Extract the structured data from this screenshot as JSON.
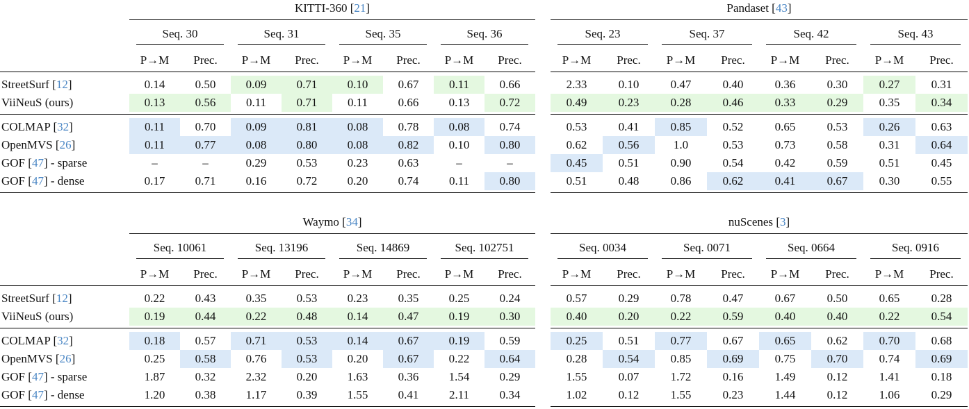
{
  "colors": {
    "highlight_green": "#e4f8e0",
    "highlight_blue": "#dbe9f8",
    "citation_blue": "#4a86c4",
    "text": "#111111",
    "rule": "#000000"
  },
  "metric_headers": [
    "P→M",
    "Prec."
  ],
  "missing_value": "–",
  "tables": [
    {
      "title": "KITTI-360",
      "cite": "21",
      "has_labels": true,
      "seqs": [
        "Seq. 30",
        "Seq. 31",
        "Seq. 35",
        "Seq. 36"
      ],
      "rows": [
        {
          "name": "StreetSurf",
          "cite": "12",
          "suffix": "",
          "section": 1,
          "values": [
            "0.14",
            "0.50",
            "0.09",
            "0.71",
            "0.10",
            "0.67",
            "0.11",
            "0.66"
          ],
          "hl": [
            "",
            "",
            "g",
            "g",
            "g",
            "",
            "g",
            ""
          ]
        },
        {
          "name": "ViiNeuS (ours)",
          "cite": "",
          "suffix": "",
          "section": 1,
          "values": [
            "0.13",
            "0.56",
            "0.11",
            "0.71",
            "0.11",
            "0.66",
            "0.13",
            "0.72"
          ],
          "hl": [
            "g",
            "g",
            "",
            "g",
            "",
            "",
            "",
            "g"
          ]
        },
        {
          "name": "COLMAP",
          "cite": "32",
          "suffix": "",
          "section": 2,
          "values": [
            "0.11",
            "0.70",
            "0.09",
            "0.81",
            "0.08",
            "0.78",
            "0.08",
            "0.74"
          ],
          "hl": [
            "b",
            "",
            "b",
            "b",
            "b",
            "",
            "b",
            ""
          ]
        },
        {
          "name": "OpenMVS",
          "cite": "26",
          "suffix": "",
          "section": 2,
          "values": [
            "0.11",
            "0.77",
            "0.08",
            "0.80",
            "0.08",
            "0.82",
            "0.10",
            "0.80"
          ],
          "hl": [
            "b",
            "b",
            "b",
            "b",
            "b",
            "b",
            "",
            "b"
          ]
        },
        {
          "name": "GOF",
          "cite": "47",
          "suffix": " - sparse",
          "section": 2,
          "values": [
            "–",
            "–",
            "0.29",
            "0.53",
            "0.23",
            "0.63",
            "–",
            "–"
          ],
          "hl": [
            "",
            "",
            "",
            "",
            "",
            "",
            "",
            ""
          ]
        },
        {
          "name": "GOF",
          "cite": "47",
          "suffix": " - dense",
          "section": 2,
          "values": [
            "0.17",
            "0.71",
            "0.16",
            "0.72",
            "0.20",
            "0.74",
            "0.11",
            "0.80"
          ],
          "hl": [
            "",
            "",
            "",
            "",
            "",
            "",
            "",
            "b"
          ]
        }
      ]
    },
    {
      "title": "Pandaset",
      "cite": "43",
      "has_labels": false,
      "seqs": [
        "Seq. 23",
        "Seq. 37",
        "Seq. 42",
        "Seq. 43"
      ],
      "rows": [
        {
          "name": "StreetSurf",
          "cite": "12",
          "suffix": "",
          "section": 1,
          "values": [
            "2.33",
            "0.10",
            "0.47",
            "0.40",
            "0.36",
            "0.30",
            "0.27",
            "0.31"
          ],
          "hl": [
            "",
            "",
            "",
            "",
            "",
            "",
            "g",
            ""
          ]
        },
        {
          "name": "ViiNeuS (ours)",
          "cite": "",
          "suffix": "",
          "section": 1,
          "values": [
            "0.49",
            "0.23",
            "0.28",
            "0.46",
            "0.33",
            "0.29",
            "0.35",
            "0.34"
          ],
          "hl": [
            "g",
            "g",
            "g",
            "g",
            "g",
            "g",
            "",
            "g"
          ]
        },
        {
          "name": "COLMAP",
          "cite": "32",
          "suffix": "",
          "section": 2,
          "values": [
            "0.53",
            "0.41",
            "0.85",
            "0.52",
            "0.65",
            "0.53",
            "0.26",
            "0.63"
          ],
          "hl": [
            "",
            "",
            "b",
            "",
            "",
            "",
            "b",
            ""
          ]
        },
        {
          "name": "OpenMVS",
          "cite": "26",
          "suffix": "",
          "section": 2,
          "values": [
            "0.62",
            "0.56",
            "1.0",
            "0.53",
            "0.73",
            "0.58",
            "0.31",
            "0.64"
          ],
          "hl": [
            "",
            "b",
            "",
            "",
            "",
            "",
            "",
            "b"
          ]
        },
        {
          "name": "GOF",
          "cite": "47",
          "suffix": " - sparse",
          "section": 2,
          "values": [
            "0.45",
            "0.51",
            "0.90",
            "0.54",
            "0.42",
            "0.59",
            "0.51",
            "0.45"
          ],
          "hl": [
            "b",
            "",
            "",
            "",
            "",
            "",
            "",
            ""
          ]
        },
        {
          "name": "GOF",
          "cite": "47",
          "suffix": " - dense",
          "section": 2,
          "values": [
            "0.51",
            "0.48",
            "0.86",
            "0.62",
            "0.41",
            "0.67",
            "0.30",
            "0.55"
          ],
          "hl": [
            "",
            "",
            "",
            "b",
            "b",
            "b",
            "",
            ""
          ]
        }
      ]
    },
    {
      "title": "Waymo",
      "cite": "34",
      "has_labels": true,
      "seqs": [
        "Seq. 10061",
        "Seq. 13196",
        "Seq. 14869",
        "Seq. 102751"
      ],
      "rows": [
        {
          "name": "StreetSurf",
          "cite": "12",
          "suffix": "",
          "section": 1,
          "values": [
            "0.22",
            "0.43",
            "0.35",
            "0.53",
            "0.23",
            "0.35",
            "0.25",
            "0.24"
          ],
          "hl": [
            "",
            "",
            "",
            "",
            "",
            "",
            "",
            ""
          ]
        },
        {
          "name": "ViiNeuS (ours)",
          "cite": "",
          "suffix": "",
          "section": 1,
          "values": [
            "0.19",
            "0.44",
            "0.22",
            "0.48",
            "0.14",
            "0.47",
            "0.19",
            "0.30"
          ],
          "hl": [
            "g",
            "g",
            "g",
            "g",
            "g",
            "g",
            "g",
            "g"
          ]
        },
        {
          "name": "COLMAP",
          "cite": "32",
          "suffix": "",
          "section": 2,
          "values": [
            "0.18",
            "0.57",
            "0.71",
            "0.53",
            "0.14",
            "0.67",
            "0.19",
            "0.59"
          ],
          "hl": [
            "b",
            "",
            "b",
            "b",
            "b",
            "b",
            "b",
            ""
          ]
        },
        {
          "name": "OpenMVS",
          "cite": "26",
          "suffix": "",
          "section": 2,
          "values": [
            "0.25",
            "0.58",
            "0.76",
            "0.53",
            "0.20",
            "0.67",
            "0.22",
            "0.64"
          ],
          "hl": [
            "",
            "b",
            "",
            "b",
            "",
            "b",
            "",
            "b"
          ]
        },
        {
          "name": "GOF",
          "cite": "47",
          "suffix": " - sparse",
          "section": 2,
          "values": [
            "1.87",
            "0.32",
            "2.32",
            "0.20",
            "1.63",
            "0.36",
            "1.54",
            "0.29"
          ],
          "hl": [
            "",
            "",
            "",
            "",
            "",
            "",
            "",
            ""
          ]
        },
        {
          "name": "GOF",
          "cite": "47",
          "suffix": " - dense",
          "section": 2,
          "values": [
            "1.20",
            "0.38",
            "1.17",
            "0.39",
            "1.55",
            "0.41",
            "2.11",
            "0.34"
          ],
          "hl": [
            "",
            "",
            "",
            "",
            "",
            "",
            "",
            ""
          ]
        }
      ]
    },
    {
      "title": "nuScenes",
      "cite": "3",
      "has_labels": false,
      "seqs": [
        "Seq. 0034",
        "Seq. 0071",
        "Seq. 0664",
        "Seq. 0916"
      ],
      "rows": [
        {
          "name": "StreetSurf",
          "cite": "12",
          "suffix": "",
          "section": 1,
          "values": [
            "0.57",
            "0.29",
            "0.78",
            "0.47",
            "0.67",
            "0.50",
            "0.65",
            "0.28"
          ],
          "hl": [
            "",
            "",
            "",
            "",
            "",
            "",
            "",
            ""
          ]
        },
        {
          "name": "ViiNeuS (ours)",
          "cite": "",
          "suffix": "",
          "section": 1,
          "values": [
            "0.40",
            "0.20",
            "0.22",
            "0.59",
            "0.40",
            "0.40",
            "0.22",
            "0.54"
          ],
          "hl": [
            "g",
            "g",
            "g",
            "g",
            "g",
            "g",
            "g",
            "g"
          ]
        },
        {
          "name": "COLMAP",
          "cite": "32",
          "suffix": "",
          "section": 2,
          "values": [
            "0.25",
            "0.51",
            "0.77",
            "0.67",
            "0.65",
            "0.62",
            "0.70",
            "0.68"
          ],
          "hl": [
            "b",
            "",
            "b",
            "",
            "b",
            "",
            "b",
            ""
          ]
        },
        {
          "name": "OpenMVS",
          "cite": "26",
          "suffix": "",
          "section": 2,
          "values": [
            "0.28",
            "0.54",
            "0.85",
            "0.69",
            "0.75",
            "0.70",
            "0.74",
            "0.69"
          ],
          "hl": [
            "",
            "b",
            "",
            "b",
            "",
            "b",
            "",
            "b"
          ]
        },
        {
          "name": "GOF",
          "cite": "47",
          "suffix": " - sparse",
          "section": 2,
          "values": [
            "1.55",
            "0.07",
            "1.72",
            "0.16",
            "1.49",
            "0.12",
            "1.41",
            "0.18"
          ],
          "hl": [
            "",
            "",
            "",
            "",
            "",
            "",
            "",
            ""
          ]
        },
        {
          "name": "GOF",
          "cite": "47",
          "suffix": " - dense",
          "section": 2,
          "values": [
            "1.02",
            "0.12",
            "1.55",
            "0.23",
            "1.44",
            "0.12",
            "1.06",
            "0.29"
          ],
          "hl": [
            "",
            "",
            "",
            "",
            "",
            "",
            "",
            ""
          ]
        }
      ]
    }
  ]
}
